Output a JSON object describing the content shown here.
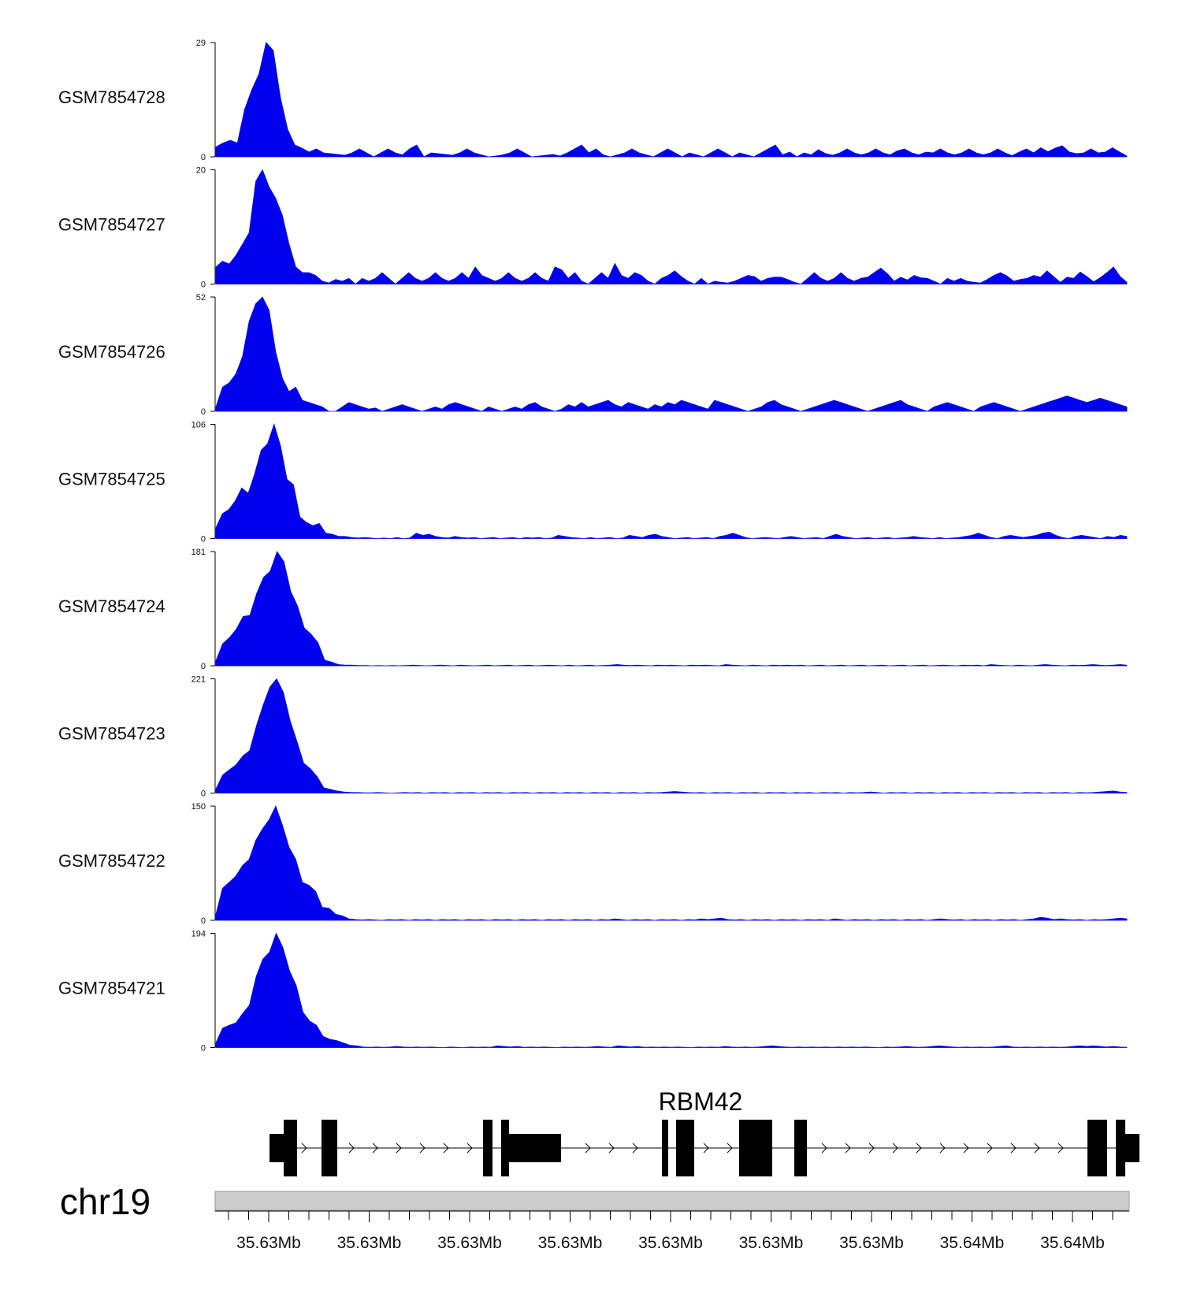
{
  "chart_data": {
    "type": "area",
    "fill_color": "#0000ee",
    "chromosome": "chr19",
    "gene": {
      "name": "RBM42"
    },
    "x_tick_labels": [
      "35.63Mb",
      "35.63Mb",
      "35.63Mb",
      "35.63Mb",
      "35.63Mb",
      "35.63Mb",
      "35.63Mb",
      "35.64Mb",
      "35.64Mb"
    ],
    "tracks": [
      {
        "name": "GSM7854728",
        "ymax_label": "29",
        "ymin_label": "0",
        "ymax": 29,
        "values": [
          2.5,
          3.5,
          4.2,
          3.5,
          12,
          17,
          21,
          29,
          27,
          15,
          7,
          3,
          2.2,
          1.2,
          2,
          1,
          0.8,
          0.6,
          0.4,
          1,
          2,
          1,
          0,
          1,
          2,
          1,
          0.5,
          2,
          3,
          0,
          1,
          0.8,
          0.6,
          0.4,
          1,
          2,
          1,
          0.5,
          0,
          0.2,
          0.5,
          1,
          2,
          1,
          0,
          0.2,
          0.4,
          0.6,
          0.2,
          1,
          2,
          3,
          1,
          2,
          0.5,
          0,
          0.5,
          1,
          2,
          1,
          0.5,
          0,
          1,
          2,
          1,
          0,
          1,
          0.5,
          0,
          1,
          2,
          1,
          0,
          1,
          0.5,
          0,
          1,
          2,
          3,
          0.5,
          1.2,
          0,
          1,
          0.5,
          1.8,
          0.8,
          0.4,
          1,
          2,
          1,
          0.5,
          1,
          2,
          1,
          0.5,
          1.5,
          2,
          1,
          0.5,
          1.2,
          1,
          2,
          1,
          0.5,
          1,
          2,
          1,
          0.5,
          1,
          2,
          1,
          0.3,
          1.2,
          2,
          1,
          2.3,
          1.3,
          2.2,
          2.8,
          1.2,
          0.8,
          1,
          2,
          1,
          1.2,
          2.3,
          1.2,
          0.2
        ]
      },
      {
        "name": "GSM7854727",
        "ymax_label": "20",
        "ymin_label": "0",
        "ymax": 20,
        "values": [
          3,
          4,
          3.5,
          5,
          7,
          9,
          18,
          20,
          17,
          15,
          12,
          7,
          3,
          2,
          2,
          1.5,
          0.5,
          0.2,
          0.8,
          0.5,
          1,
          0,
          1,
          0.5,
          1,
          2,
          1,
          0,
          1,
          2,
          1,
          0.5,
          1,
          2,
          1,
          0.5,
          1,
          2,
          1,
          3,
          1.5,
          1,
          0.5,
          1,
          2,
          1,
          0.5,
          1,
          2,
          1,
          0.5,
          3,
          2.5,
          1,
          2,
          0.5,
          0,
          1,
          2,
          1,
          3.6,
          1.5,
          1,
          2,
          1.5,
          0.5,
          0,
          1,
          1.5,
          2.3,
          1.3,
          0.5,
          0,
          1,
          0,
          0.5,
          0.3,
          0.2,
          0.5,
          1,
          1.5,
          1.3,
          0.5,
          1,
          1.2,
          1.2,
          0.8,
          0.3,
          0,
          1,
          2,
          1,
          0.5,
          1,
          2,
          1,
          0.5,
          1,
          1.2,
          2,
          2.8,
          1.8,
          0.5,
          1.2,
          0.7,
          1.5,
          1.1,
          1,
          0.5,
          0,
          1,
          0.5,
          1,
          0.5,
          0.3,
          0.2,
          0.8,
          1.5,
          2,
          1.4,
          0.5,
          0.8,
          1,
          1.5,
          1.2,
          2.3,
          1.3,
          0.3,
          1.2,
          1,
          2.1,
          1.3,
          0.4,
          1.1,
          2,
          3,
          1.3,
          0.3
        ]
      },
      {
        "name": "GSM7854726",
        "ymax_label": "52",
        "ymin_label": "0",
        "ymax": 52,
        "values": [
          2,
          11,
          13,
          17,
          25,
          41,
          49,
          52,
          46,
          27,
          15,
          9,
          11,
          5,
          4,
          3,
          2,
          0,
          0,
          2,
          4,
          3,
          2,
          1,
          1.5,
          0,
          1,
          2,
          3,
          2,
          1,
          0,
          1,
          2,
          1,
          3,
          4,
          3,
          2,
          1,
          0,
          2,
          1,
          0,
          1,
          2,
          1,
          3,
          4,
          2,
          1,
          0,
          1,
          3,
          2,
          4,
          2,
          3,
          4,
          5,
          3,
          2,
          4,
          3,
          2,
          1,
          3,
          2,
          4,
          3,
          5,
          4,
          3,
          2,
          1,
          5,
          4,
          3,
          2,
          1,
          0,
          1,
          2,
          4,
          5,
          3,
          2,
          1,
          0,
          1,
          2,
          3,
          4,
          5,
          4,
          3,
          2,
          1,
          0,
          1,
          2,
          3,
          4,
          5,
          3,
          2,
          1,
          0,
          2,
          3,
          4,
          3,
          2,
          1,
          0,
          2,
          3,
          4,
          3,
          2,
          1,
          0,
          1,
          2,
          3,
          4,
          5,
          6,
          7,
          6,
          5,
          4,
          5,
          6,
          5,
          4,
          3,
          2
        ]
      },
      {
        "name": "GSM7854725",
        "ymax_label": "106",
        "ymin_label": "0",
        "ymax": 106,
        "values": [
          10,
          23,
          27,
          35,
          47,
          42,
          60,
          82,
          88,
          106,
          86,
          55,
          50,
          20,
          15,
          12,
          14,
          5,
          4,
          2,
          2,
          1,
          0.5,
          1,
          0.5,
          0,
          0.5,
          0,
          1,
          0,
          0.5,
          5,
          3,
          4,
          2,
          1,
          0.5,
          2,
          1,
          0.5,
          1,
          0,
          0.5,
          1,
          0,
          0.5,
          1,
          0,
          1,
          0.5,
          1,
          0,
          0.5,
          3,
          2,
          1,
          0.5,
          0,
          1,
          0,
          0.5,
          1,
          0,
          0.5,
          3,
          2,
          1,
          3,
          4,
          2,
          1,
          0,
          0.5,
          1,
          0,
          0.5,
          1,
          0,
          2,
          3,
          5,
          3,
          1,
          0,
          0.5,
          1,
          0.5,
          0,
          1,
          2,
          1,
          0,
          0.5,
          1,
          0,
          2,
          4,
          2,
          1,
          0,
          0.5,
          1,
          0,
          0.5,
          1,
          0,
          0.5,
          1,
          2,
          1,
          0.5,
          0,
          1,
          0,
          0.5,
          1,
          2,
          3,
          5,
          3,
          1,
          0,
          2,
          3,
          2,
          1,
          2,
          3,
          5,
          6,
          3,
          1,
          0,
          2,
          3,
          2,
          1,
          0,
          2,
          1,
          3,
          2
        ]
      },
      {
        "name": "GSM7854724",
        "ymax_label": "181",
        "ymin_label": "0",
        "ymax": 181,
        "values": [
          8,
          35,
          45,
          58,
          78,
          80,
          115,
          140,
          150,
          182,
          165,
          118,
          95,
          60,
          50,
          37,
          9,
          6,
          2,
          1,
          1,
          0.5,
          0.5,
          0,
          0.5,
          0,
          0.5,
          0,
          0.5,
          1,
          0.5,
          0,
          0.5,
          1,
          0.5,
          0,
          1,
          0.5,
          0,
          0.5,
          1,
          0,
          0.5,
          1,
          0,
          0.5,
          1,
          0,
          0.5,
          1,
          0.5,
          0,
          1,
          0,
          0.5,
          1,
          0,
          0.5,
          1,
          2,
          1,
          0.5,
          1,
          0.5,
          0,
          1,
          0.5,
          1,
          0.5,
          0,
          1,
          0.5,
          1,
          0.5,
          0,
          2,
          1,
          0.5,
          0,
          1,
          0.5,
          0,
          1,
          0.5,
          1,
          0.5,
          1,
          0,
          0.5,
          1,
          0,
          0.5,
          1,
          0,
          0.5,
          1,
          0,
          0.5,
          1,
          0,
          0.5,
          1,
          0,
          0.5,
          1,
          0,
          0.5,
          1,
          0.5,
          0,
          1,
          0.5,
          1,
          0,
          2,
          1,
          0.5,
          0,
          1,
          0.5,
          0,
          1,
          2,
          1,
          0.5,
          0,
          1,
          0.5,
          1,
          2,
          1,
          0.5,
          1,
          2,
          1
        ]
      },
      {
        "name": "GSM7854723",
        "ymax_label": "221",
        "ymin_label": "0",
        "ymax": 221,
        "values": [
          8,
          35,
          45,
          55,
          72,
          82,
          130,
          170,
          205,
          222,
          195,
          140,
          100,
          58,
          47,
          32,
          10,
          7,
          4,
          2,
          1,
          1,
          0.5,
          0.5,
          1,
          0.5,
          0,
          0.5,
          1,
          0.5,
          1,
          0,
          1,
          0.5,
          1,
          0,
          1,
          0.5,
          1,
          0,
          1,
          0.5,
          1,
          0,
          1,
          0.5,
          1,
          0,
          1,
          0.5,
          1,
          0,
          1,
          0.5,
          1,
          0,
          1,
          0.5,
          1,
          0,
          1,
          0.5,
          1,
          0,
          1,
          0.5,
          1,
          2,
          3,
          2,
          1,
          0.5,
          1,
          0,
          1,
          0.5,
          1,
          0,
          1,
          0.5,
          1,
          0,
          1,
          0.5,
          1,
          0,
          1,
          0.5,
          1,
          0,
          1,
          0.5,
          1,
          0,
          1,
          0.5,
          1,
          2,
          1,
          0,
          1,
          0.5,
          1,
          0,
          1,
          0.5,
          1,
          0,
          1,
          0.5,
          1,
          0,
          1,
          0.5,
          1,
          0,
          1,
          0.5,
          1,
          0,
          1,
          0.5,
          1,
          0,
          1,
          0.5,
          1,
          0,
          1,
          0.5,
          1,
          2,
          3,
          4,
          2,
          1
        ]
      },
      {
        "name": "GSM7854722",
        "ymax_label": "150",
        "ymin_label": "0",
        "ymax": 150,
        "values": [
          8,
          42,
          50,
          58,
          72,
          80,
          105,
          120,
          132,
          150,
          125,
          96,
          80,
          50,
          46,
          38,
          17,
          16,
          8,
          6,
          2,
          1,
          0.5,
          1,
          0.5,
          0,
          1,
          0.5,
          1,
          0,
          1,
          0.5,
          1,
          0,
          1,
          0.5,
          1,
          0,
          1,
          0.5,
          1,
          0,
          1,
          0.5,
          1,
          0,
          1,
          0.5,
          1,
          0,
          1,
          0.5,
          1,
          0,
          1,
          0.5,
          1,
          0,
          1,
          0.5,
          2,
          1,
          0,
          1,
          0.5,
          1,
          0,
          1,
          0.5,
          1,
          0,
          1,
          0.5,
          2,
          1,
          2,
          3,
          1,
          0.5,
          1,
          0,
          1,
          0.5,
          1,
          0,
          1,
          0.5,
          1,
          0,
          1,
          0.5,
          1,
          0,
          2,
          1,
          0,
          1,
          0.5,
          1,
          0,
          1,
          0.5,
          1,
          0,
          1,
          0.5,
          1,
          0,
          1,
          2,
          1,
          0.5,
          1,
          0,
          1,
          0.5,
          1,
          0,
          1,
          0.5,
          1,
          0,
          1,
          2,
          4,
          3,
          1,
          2,
          1,
          0.5,
          1,
          0,
          1,
          0.5,
          1,
          2,
          3,
          2
        ]
      },
      {
        "name": "GSM7854721",
        "ymax_label": "194",
        "ymin_label": "0",
        "ymax": 194,
        "values": [
          8,
          33,
          38,
          42,
          58,
          72,
          120,
          150,
          162,
          195,
          170,
          130,
          105,
          60,
          45,
          38,
          19,
          14,
          12,
          8,
          4,
          3,
          1,
          0.5,
          1,
          0.5,
          1,
          2,
          1,
          0.5,
          1,
          0.5,
          1,
          0.5,
          0,
          1,
          0.5,
          0,
          1,
          0.5,
          1,
          0.5,
          3,
          2,
          1,
          2,
          0.5,
          1,
          0.5,
          1,
          0.5,
          0,
          1,
          0.5,
          1,
          0.5,
          1,
          2,
          1,
          0.5,
          3,
          2,
          1,
          2,
          0.5,
          1,
          0.5,
          1,
          0.5,
          1,
          0.5,
          0,
          1,
          0.5,
          1,
          0.5,
          2,
          1,
          0.5,
          1,
          0.5,
          1,
          2,
          3,
          2,
          1,
          0.5,
          1,
          0.5,
          1,
          0.5,
          1,
          0.5,
          1,
          0.5,
          1,
          0.5,
          1,
          0.5,
          0,
          1,
          0.5,
          1,
          2,
          1,
          0.5,
          1,
          2,
          3,
          2,
          1,
          0.5,
          1,
          0.5,
          1,
          0.5,
          1,
          2,
          3,
          1,
          0.5,
          1,
          0.5,
          1,
          0.5,
          1,
          0.5,
          1,
          2,
          3,
          2,
          3,
          2,
          1,
          2,
          1,
          0.5
        ]
      }
    ]
  }
}
